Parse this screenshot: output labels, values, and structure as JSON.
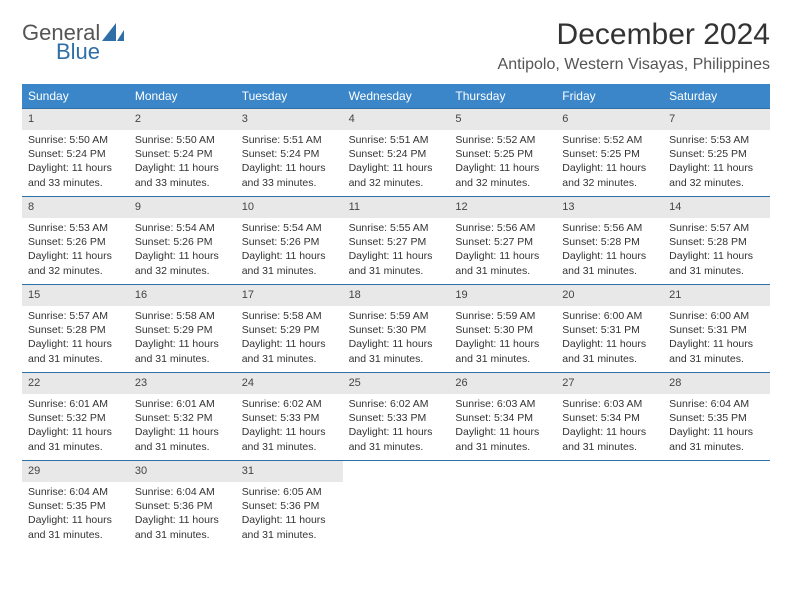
{
  "brand": {
    "line1": "General",
    "line2": "Blue"
  },
  "title": "December 2024",
  "location": "Antipolo, Western Visayas, Philippines",
  "styling": {
    "header_bg": "#3a86c8",
    "header_fg": "#ffffff",
    "rule_color": "#2f6fa7",
    "daynum_bg": "#e8e8e8",
    "page_bg": "#ffffff",
    "text_color": "#333333",
    "title_fontsize": 30,
    "location_fontsize": 16,
    "body_fontsize": 10.5,
    "columns": 7
  },
  "day_headers": [
    "Sunday",
    "Monday",
    "Tuesday",
    "Wednesday",
    "Thursday",
    "Friday",
    "Saturday"
  ],
  "days": [
    {
      "n": "1",
      "sunrise": "Sunrise: 5:50 AM",
      "sunset": "Sunset: 5:24 PM",
      "daylight": "Daylight: 11 hours and 33 minutes."
    },
    {
      "n": "2",
      "sunrise": "Sunrise: 5:50 AM",
      "sunset": "Sunset: 5:24 PM",
      "daylight": "Daylight: 11 hours and 33 minutes."
    },
    {
      "n": "3",
      "sunrise": "Sunrise: 5:51 AM",
      "sunset": "Sunset: 5:24 PM",
      "daylight": "Daylight: 11 hours and 33 minutes."
    },
    {
      "n": "4",
      "sunrise": "Sunrise: 5:51 AM",
      "sunset": "Sunset: 5:24 PM",
      "daylight": "Daylight: 11 hours and 32 minutes."
    },
    {
      "n": "5",
      "sunrise": "Sunrise: 5:52 AM",
      "sunset": "Sunset: 5:25 PM",
      "daylight": "Daylight: 11 hours and 32 minutes."
    },
    {
      "n": "6",
      "sunrise": "Sunrise: 5:52 AM",
      "sunset": "Sunset: 5:25 PM",
      "daylight": "Daylight: 11 hours and 32 minutes."
    },
    {
      "n": "7",
      "sunrise": "Sunrise: 5:53 AM",
      "sunset": "Sunset: 5:25 PM",
      "daylight": "Daylight: 11 hours and 32 minutes."
    },
    {
      "n": "8",
      "sunrise": "Sunrise: 5:53 AM",
      "sunset": "Sunset: 5:26 PM",
      "daylight": "Daylight: 11 hours and 32 minutes."
    },
    {
      "n": "9",
      "sunrise": "Sunrise: 5:54 AM",
      "sunset": "Sunset: 5:26 PM",
      "daylight": "Daylight: 11 hours and 32 minutes."
    },
    {
      "n": "10",
      "sunrise": "Sunrise: 5:54 AM",
      "sunset": "Sunset: 5:26 PM",
      "daylight": "Daylight: 11 hours and 31 minutes."
    },
    {
      "n": "11",
      "sunrise": "Sunrise: 5:55 AM",
      "sunset": "Sunset: 5:27 PM",
      "daylight": "Daylight: 11 hours and 31 minutes."
    },
    {
      "n": "12",
      "sunrise": "Sunrise: 5:56 AM",
      "sunset": "Sunset: 5:27 PM",
      "daylight": "Daylight: 11 hours and 31 minutes."
    },
    {
      "n": "13",
      "sunrise": "Sunrise: 5:56 AM",
      "sunset": "Sunset: 5:28 PM",
      "daylight": "Daylight: 11 hours and 31 minutes."
    },
    {
      "n": "14",
      "sunrise": "Sunrise: 5:57 AM",
      "sunset": "Sunset: 5:28 PM",
      "daylight": "Daylight: 11 hours and 31 minutes."
    },
    {
      "n": "15",
      "sunrise": "Sunrise: 5:57 AM",
      "sunset": "Sunset: 5:28 PM",
      "daylight": "Daylight: 11 hours and 31 minutes."
    },
    {
      "n": "16",
      "sunrise": "Sunrise: 5:58 AM",
      "sunset": "Sunset: 5:29 PM",
      "daylight": "Daylight: 11 hours and 31 minutes."
    },
    {
      "n": "17",
      "sunrise": "Sunrise: 5:58 AM",
      "sunset": "Sunset: 5:29 PM",
      "daylight": "Daylight: 11 hours and 31 minutes."
    },
    {
      "n": "18",
      "sunrise": "Sunrise: 5:59 AM",
      "sunset": "Sunset: 5:30 PM",
      "daylight": "Daylight: 11 hours and 31 minutes."
    },
    {
      "n": "19",
      "sunrise": "Sunrise: 5:59 AM",
      "sunset": "Sunset: 5:30 PM",
      "daylight": "Daylight: 11 hours and 31 minutes."
    },
    {
      "n": "20",
      "sunrise": "Sunrise: 6:00 AM",
      "sunset": "Sunset: 5:31 PM",
      "daylight": "Daylight: 11 hours and 31 minutes."
    },
    {
      "n": "21",
      "sunrise": "Sunrise: 6:00 AM",
      "sunset": "Sunset: 5:31 PM",
      "daylight": "Daylight: 11 hours and 31 minutes."
    },
    {
      "n": "22",
      "sunrise": "Sunrise: 6:01 AM",
      "sunset": "Sunset: 5:32 PM",
      "daylight": "Daylight: 11 hours and 31 minutes."
    },
    {
      "n": "23",
      "sunrise": "Sunrise: 6:01 AM",
      "sunset": "Sunset: 5:32 PM",
      "daylight": "Daylight: 11 hours and 31 minutes."
    },
    {
      "n": "24",
      "sunrise": "Sunrise: 6:02 AM",
      "sunset": "Sunset: 5:33 PM",
      "daylight": "Daylight: 11 hours and 31 minutes."
    },
    {
      "n": "25",
      "sunrise": "Sunrise: 6:02 AM",
      "sunset": "Sunset: 5:33 PM",
      "daylight": "Daylight: 11 hours and 31 minutes."
    },
    {
      "n": "26",
      "sunrise": "Sunrise: 6:03 AM",
      "sunset": "Sunset: 5:34 PM",
      "daylight": "Daylight: 11 hours and 31 minutes."
    },
    {
      "n": "27",
      "sunrise": "Sunrise: 6:03 AM",
      "sunset": "Sunset: 5:34 PM",
      "daylight": "Daylight: 11 hours and 31 minutes."
    },
    {
      "n": "28",
      "sunrise": "Sunrise: 6:04 AM",
      "sunset": "Sunset: 5:35 PM",
      "daylight": "Daylight: 11 hours and 31 minutes."
    },
    {
      "n": "29",
      "sunrise": "Sunrise: 6:04 AM",
      "sunset": "Sunset: 5:35 PM",
      "daylight": "Daylight: 11 hours and 31 minutes."
    },
    {
      "n": "30",
      "sunrise": "Sunrise: 6:04 AM",
      "sunset": "Sunset: 5:36 PM",
      "daylight": "Daylight: 11 hours and 31 minutes."
    },
    {
      "n": "31",
      "sunrise": "Sunrise: 6:05 AM",
      "sunset": "Sunset: 5:36 PM",
      "daylight": "Daylight: 11 hours and 31 minutes."
    }
  ]
}
